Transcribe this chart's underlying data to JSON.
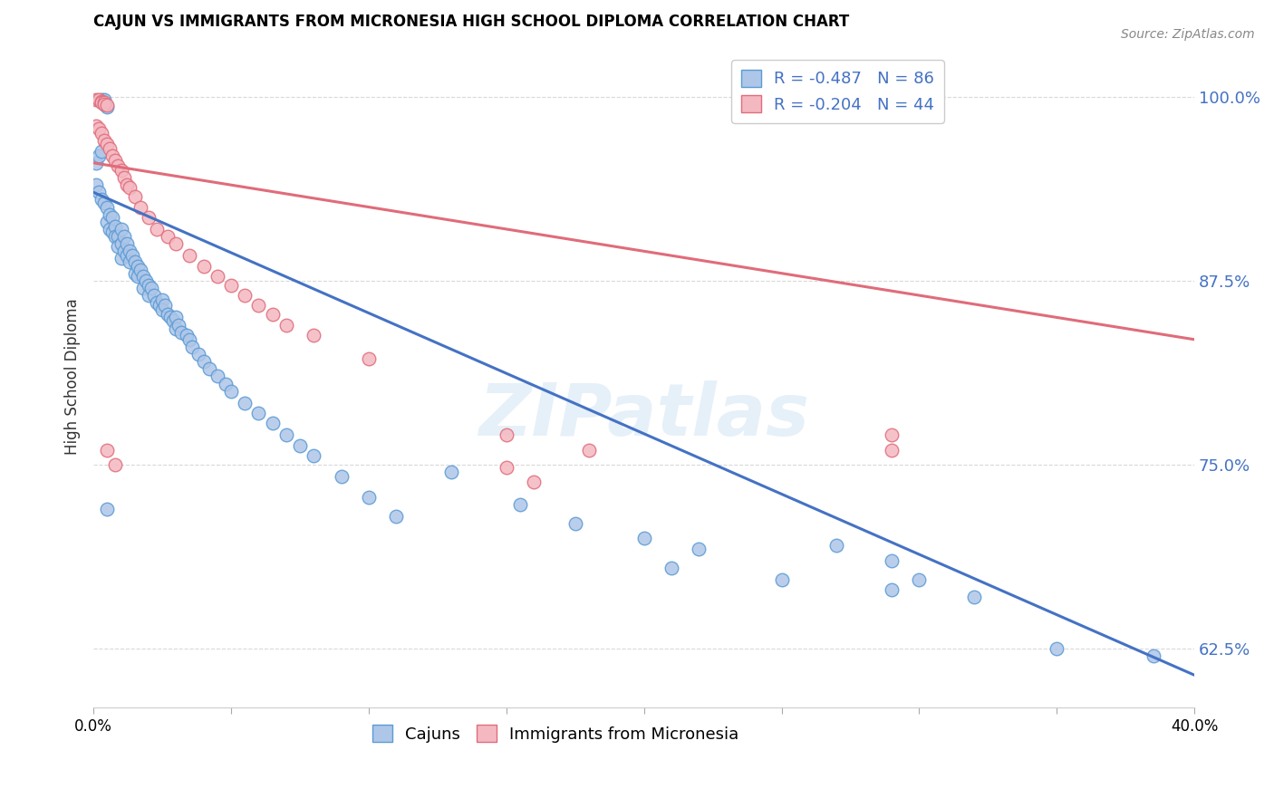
{
  "title": "CAJUN VS IMMIGRANTS FROM MICRONESIA HIGH SCHOOL DIPLOMA CORRELATION CHART",
  "source": "Source: ZipAtlas.com",
  "ylabel": "High School Diploma",
  "ytick_values": [
    0.625,
    0.75,
    0.875,
    1.0
  ],
  "xmin": 0.0,
  "xmax": 0.4,
  "ymin": 0.585,
  "ymax": 1.035,
  "cajun_color": "#aec6e8",
  "cajun_edge": "#5b9bd5",
  "micronesia_color": "#f4b8c1",
  "micronesia_edge": "#e06c7a",
  "trend_cajun_color": "#4472c4",
  "trend_micronesia_color": "#e06c7a",
  "watermark": "ZIPatlas",
  "background_color": "#ffffff",
  "grid_color": "#d9d9d9",
  "cajun_intercept": 0.935,
  "cajun_slope": -0.82,
  "micronesia_intercept": 0.955,
  "micronesia_slope": -0.3,
  "cajun_points": [
    [
      0.001,
      0.955
    ],
    [
      0.002,
      0.96
    ],
    [
      0.003,
      0.963
    ],
    [
      0.003,
      0.998
    ],
    [
      0.004,
      0.998
    ],
    [
      0.004,
      0.995
    ],
    [
      0.005,
      0.993
    ],
    [
      0.001,
      0.94
    ],
    [
      0.002,
      0.935
    ],
    [
      0.003,
      0.93
    ],
    [
      0.004,
      0.928
    ],
    [
      0.005,
      0.925
    ],
    [
      0.005,
      0.915
    ],
    [
      0.006,
      0.92
    ],
    [
      0.006,
      0.91
    ],
    [
      0.007,
      0.918
    ],
    [
      0.007,
      0.908
    ],
    [
      0.008,
      0.912
    ],
    [
      0.008,
      0.905
    ],
    [
      0.009,
      0.905
    ],
    [
      0.009,
      0.898
    ],
    [
      0.01,
      0.91
    ],
    [
      0.01,
      0.9
    ],
    [
      0.01,
      0.89
    ],
    [
      0.011,
      0.905
    ],
    [
      0.011,
      0.895
    ],
    [
      0.012,
      0.9
    ],
    [
      0.012,
      0.892
    ],
    [
      0.013,
      0.895
    ],
    [
      0.013,
      0.888
    ],
    [
      0.014,
      0.892
    ],
    [
      0.015,
      0.888
    ],
    [
      0.015,
      0.88
    ],
    [
      0.016,
      0.885
    ],
    [
      0.016,
      0.878
    ],
    [
      0.017,
      0.882
    ],
    [
      0.018,
      0.878
    ],
    [
      0.018,
      0.87
    ],
    [
      0.019,
      0.875
    ],
    [
      0.02,
      0.872
    ],
    [
      0.02,
      0.865
    ],
    [
      0.021,
      0.87
    ],
    [
      0.022,
      0.865
    ],
    [
      0.023,
      0.86
    ],
    [
      0.024,
      0.858
    ],
    [
      0.025,
      0.862
    ],
    [
      0.025,
      0.855
    ],
    [
      0.026,
      0.858
    ],
    [
      0.027,
      0.852
    ],
    [
      0.028,
      0.85
    ],
    [
      0.029,
      0.848
    ],
    [
      0.03,
      0.85
    ],
    [
      0.03,
      0.842
    ],
    [
      0.031,
      0.845
    ],
    [
      0.032,
      0.84
    ],
    [
      0.034,
      0.838
    ],
    [
      0.035,
      0.835
    ],
    [
      0.036,
      0.83
    ],
    [
      0.038,
      0.825
    ],
    [
      0.04,
      0.82
    ],
    [
      0.042,
      0.815
    ],
    [
      0.045,
      0.81
    ],
    [
      0.048,
      0.805
    ],
    [
      0.05,
      0.8
    ],
    [
      0.055,
      0.792
    ],
    [
      0.06,
      0.785
    ],
    [
      0.065,
      0.778
    ],
    [
      0.07,
      0.77
    ],
    [
      0.075,
      0.763
    ],
    [
      0.08,
      0.756
    ],
    [
      0.09,
      0.742
    ],
    [
      0.1,
      0.728
    ],
    [
      0.11,
      0.715
    ],
    [
      0.13,
      0.745
    ],
    [
      0.155,
      0.723
    ],
    [
      0.175,
      0.71
    ],
    [
      0.2,
      0.7
    ],
    [
      0.22,
      0.693
    ],
    [
      0.27,
      0.695
    ],
    [
      0.29,
      0.685
    ],
    [
      0.3,
      0.672
    ],
    [
      0.32,
      0.66
    ],
    [
      0.21,
      0.68
    ],
    [
      0.005,
      0.72
    ],
    [
      0.25,
      0.672
    ],
    [
      0.35,
      0.625
    ],
    [
      0.29,
      0.665
    ],
    [
      0.385,
      0.62
    ]
  ],
  "micronesia_points": [
    [
      0.001,
      0.998
    ],
    [
      0.002,
      0.998
    ],
    [
      0.003,
      0.997
    ],
    [
      0.003,
      0.996
    ],
    [
      0.004,
      0.996
    ],
    [
      0.004,
      0.995
    ],
    [
      0.005,
      0.994
    ],
    [
      0.001,
      0.98
    ],
    [
      0.002,
      0.978
    ],
    [
      0.003,
      0.975
    ],
    [
      0.004,
      0.97
    ],
    [
      0.005,
      0.968
    ],
    [
      0.006,
      0.965
    ],
    [
      0.007,
      0.96
    ],
    [
      0.008,
      0.957
    ],
    [
      0.009,
      0.953
    ],
    [
      0.01,
      0.95
    ],
    [
      0.011,
      0.945
    ],
    [
      0.012,
      0.94
    ],
    [
      0.013,
      0.938
    ],
    [
      0.015,
      0.932
    ],
    [
      0.017,
      0.925
    ],
    [
      0.02,
      0.918
    ],
    [
      0.023,
      0.91
    ],
    [
      0.027,
      0.905
    ],
    [
      0.03,
      0.9
    ],
    [
      0.035,
      0.892
    ],
    [
      0.04,
      0.885
    ],
    [
      0.045,
      0.878
    ],
    [
      0.05,
      0.872
    ],
    [
      0.055,
      0.865
    ],
    [
      0.06,
      0.858
    ],
    [
      0.065,
      0.852
    ],
    [
      0.07,
      0.845
    ],
    [
      0.08,
      0.838
    ],
    [
      0.1,
      0.822
    ],
    [
      0.005,
      0.76
    ],
    [
      0.008,
      0.75
    ],
    [
      0.15,
      0.77
    ],
    [
      0.18,
      0.76
    ],
    [
      0.29,
      0.77
    ],
    [
      0.29,
      0.76
    ],
    [
      0.15,
      0.748
    ],
    [
      0.16,
      0.738
    ]
  ]
}
